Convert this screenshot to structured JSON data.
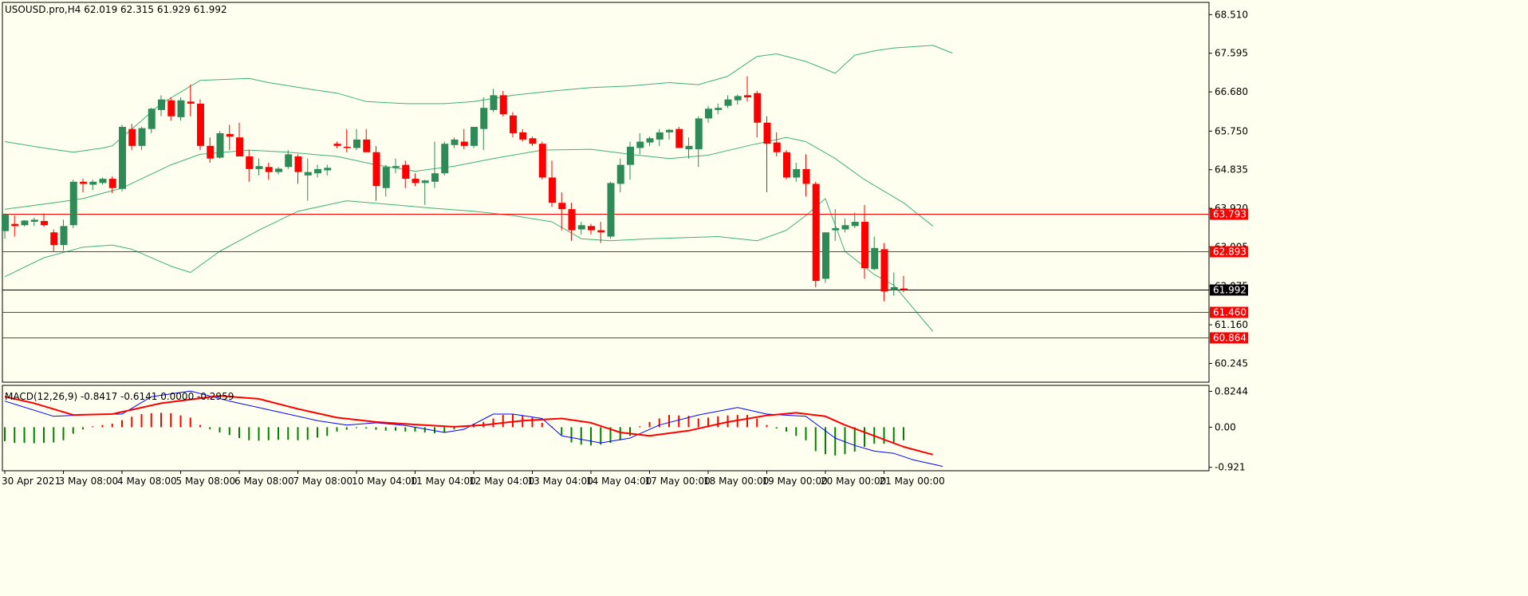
{
  "header": {
    "main_title": "USOUSD.pro,H4  62.019 62.315 61.929 61.992",
    "macd_title": "MACD(12,26,9) -0.8417 -0.6141 0.0000 -0.2959"
  },
  "colors": {
    "background": "#FFFFF0",
    "bull": "#2E8B57",
    "bear": "#FF0000",
    "bands": "#3CB371",
    "level": "#FF0000",
    "current": "#000000",
    "macd_main": "#0000FF",
    "macd_signal": "#FF0000",
    "hist_pos": "#FF0000",
    "hist_neg": "#008000"
  },
  "chart_data": [
    {
      "type": "candlestick",
      "symbol": "USOUSD.pro",
      "timeframe": "H4",
      "ohlc_readout": [
        62.019,
        62.315,
        61.929,
        61.992
      ],
      "ylim": [
        59.8,
        68.8
      ],
      "y_ticks": [
        "68.510",
        "67.595",
        "66.680",
        "65.750",
        "64.835",
        "63.920",
        "63.005",
        "62.075",
        "61.160",
        "60.245"
      ],
      "x_ticks": [
        "30 Apr 2021",
        "3 May 08:00",
        "4 May 08:00",
        "5 May 08:00",
        "6 May 08:00",
        "7 May 08:00",
        "10 May 04:00",
        "11 May 04:00",
        "12 May 04:00",
        "13 May 04:00",
        "14 May 04:00",
        "17 May 00:00",
        "18 May 00:00",
        "19 May 00:00",
        "20 May 00:00",
        "21 May 00:00"
      ],
      "price_levels": [
        {
          "value": 63.793,
          "label": "63.793",
          "color": "#FF0000",
          "style": "line"
        },
        {
          "value": 62.893,
          "label": "62.893",
          "color": "#FF0000",
          "style": "line"
        },
        {
          "value": 61.46,
          "label": "61.460",
          "color": "#FF0000",
          "style": "line"
        },
        {
          "value": 60.864,
          "label": "60.864",
          "color": "#FF0000",
          "style": "line"
        },
        {
          "value": 61.992,
          "label": "61.992",
          "color": "#000000",
          "style": "current"
        }
      ],
      "candles": [
        [
          63.38,
          63.8,
          63.2,
          63.78
        ],
        [
          63.55,
          63.75,
          63.25,
          63.5
        ],
        [
          63.52,
          63.64,
          63.49,
          63.63
        ],
        [
          63.6,
          63.7,
          63.5,
          63.65
        ],
        [
          63.62,
          63.8,
          63.48,
          63.52
        ],
        [
          63.35,
          63.42,
          62.9,
          63.05
        ],
        [
          63.05,
          63.65,
          62.92,
          63.5
        ],
        [
          63.52,
          64.6,
          63.45,
          64.55
        ],
        [
          64.55,
          64.62,
          64.3,
          64.5
        ],
        [
          64.48,
          64.6,
          64.35,
          64.55
        ],
        [
          64.52,
          64.65,
          64.48,
          64.62
        ],
        [
          64.62,
          64.68,
          64.28,
          64.4
        ],
        [
          64.38,
          65.9,
          64.32,
          65.85
        ],
        [
          65.8,
          65.92,
          65.3,
          65.4
        ],
        [
          65.4,
          65.85,
          65.3,
          65.82
        ],
        [
          65.8,
          66.3,
          65.7,
          66.28
        ],
        [
          66.25,
          66.6,
          66.1,
          66.5
        ],
        [
          66.48,
          66.55,
          66.0,
          66.1
        ],
        [
          66.08,
          66.55,
          66.0,
          66.48
        ],
        [
          66.45,
          66.85,
          66.1,
          66.4
        ],
        [
          66.4,
          66.5,
          65.3,
          65.4
        ],
        [
          65.4,
          65.6,
          65.0,
          65.1
        ],
        [
          65.12,
          65.75,
          65.1,
          65.7
        ],
        [
          65.68,
          65.9,
          65.3,
          65.62
        ],
        [
          65.6,
          65.95,
          65.15,
          65.15
        ],
        [
          65.15,
          65.3,
          64.55,
          64.85
        ],
        [
          64.85,
          65.1,
          64.7,
          64.92
        ],
        [
          64.9,
          65.0,
          64.6,
          64.78
        ],
        [
          64.78,
          64.9,
          64.72,
          64.86
        ],
        [
          64.9,
          65.3,
          64.85,
          65.2
        ],
        [
          65.15,
          65.2,
          64.5,
          64.78
        ],
        [
          64.7,
          65.1,
          64.1,
          64.78
        ],
        [
          64.75,
          64.95,
          64.65,
          64.85
        ],
        [
          64.82,
          64.95,
          64.7,
          64.88
        ],
        [
          65.45,
          65.5,
          65.35,
          65.4
        ],
        [
          65.38,
          65.8,
          65.25,
          65.35
        ],
        [
          65.35,
          65.8,
          65.3,
          65.55
        ],
        [
          65.55,
          65.8,
          65.3,
          65.25
        ],
        [
          65.25,
          65.4,
          64.1,
          64.45
        ],
        [
          64.4,
          64.95,
          64.2,
          64.9
        ],
        [
          64.88,
          65.1,
          64.75,
          64.92
        ],
        [
          64.95,
          65.05,
          64.4,
          64.62
        ],
        [
          64.62,
          64.75,
          64.45,
          64.52
        ],
        [
          64.52,
          64.6,
          64.0,
          64.58
        ],
        [
          64.55,
          65.5,
          64.4,
          64.75
        ],
        [
          64.75,
          65.5,
          64.7,
          65.45
        ],
        [
          65.42,
          65.6,
          65.35,
          65.55
        ],
        [
          65.5,
          65.8,
          65.32,
          65.4
        ],
        [
          65.4,
          65.85,
          65.35,
          65.85
        ],
        [
          65.8,
          66.55,
          65.3,
          66.3
        ],
        [
          66.25,
          66.75,
          66.2,
          66.6
        ],
        [
          66.6,
          66.7,
          66.1,
          66.15
        ],
        [
          66.12,
          66.2,
          65.6,
          65.7
        ],
        [
          65.72,
          65.8,
          65.5,
          65.55
        ],
        [
          65.58,
          65.62,
          65.4,
          65.45
        ],
        [
          65.45,
          65.5,
          64.6,
          64.65
        ],
        [
          64.65,
          65.05,
          63.95,
          64.05
        ],
        [
          64.05,
          64.3,
          63.4,
          63.9
        ],
        [
          63.9,
          64.05,
          63.15,
          63.4
        ],
        [
          63.42,
          63.6,
          63.3,
          63.52
        ],
        [
          63.5,
          63.55,
          63.3,
          63.4
        ],
        [
          63.4,
          63.6,
          63.1,
          63.35
        ],
        [
          63.25,
          64.55,
          63.2,
          64.52
        ],
        [
          64.5,
          65.1,
          64.3,
          64.95
        ],
        [
          64.95,
          65.5,
          64.6,
          65.38
        ],
        [
          65.35,
          65.7,
          65.2,
          65.5
        ],
        [
          65.48,
          65.62,
          65.4,
          65.58
        ],
        [
          65.55,
          65.8,
          65.4,
          65.72
        ],
        [
          65.72,
          65.8,
          65.55,
          65.78
        ],
        [
          65.8,
          65.85,
          65.35,
          65.35
        ],
        [
          65.32,
          65.6,
          65.1,
          65.4
        ],
        [
          65.32,
          66.1,
          64.9,
          66.05
        ],
        [
          66.05,
          66.35,
          65.95,
          66.28
        ],
        [
          66.25,
          66.4,
          66.15,
          66.3
        ],
        [
          66.35,
          66.6,
          66.3,
          66.5
        ],
        [
          66.48,
          66.62,
          66.38,
          66.58
        ],
        [
          66.6,
          67.05,
          66.45,
          66.55
        ],
        [
          66.65,
          66.7,
          65.6,
          65.95
        ],
        [
          65.95,
          66.1,
          64.3,
          65.45
        ],
        [
          65.48,
          65.72,
          65.15,
          65.25
        ],
        [
          65.25,
          65.3,
          64.6,
          64.65
        ],
        [
          64.65,
          65.0,
          64.55,
          64.85
        ],
        [
          64.85,
          65.2,
          64.2,
          64.5
        ],
        [
          64.5,
          64.55,
          62.05,
          62.2
        ],
        [
          62.25,
          63.35,
          62.15,
          63.35
        ],
        [
          63.4,
          63.9,
          63.15,
          63.45
        ],
        [
          63.42,
          63.68,
          63.35,
          63.52
        ],
        [
          63.5,
          63.82,
          63.45,
          63.6
        ],
        [
          63.6,
          64.0,
          62.25,
          62.5
        ],
        [
          62.48,
          63.25,
          62.45,
          62.98
        ],
        [
          62.95,
          63.1,
          61.72,
          61.95
        ],
        [
          61.98,
          62.4,
          61.85,
          62.05
        ],
        [
          62.02,
          62.32,
          61.93,
          61.99
        ]
      ],
      "bollinger_upper": [
        [
          0,
          65.5
        ],
        [
          4,
          65.35
        ],
        [
          7,
          65.25
        ],
        [
          10,
          65.35
        ],
        [
          11,
          65.4
        ],
        [
          13,
          65.8
        ],
        [
          16,
          66.4
        ],
        [
          20,
          66.95
        ],
        [
          25,
          67.0
        ],
        [
          27,
          66.9
        ],
        [
          31,
          66.75
        ],
        [
          34,
          66.65
        ],
        [
          37,
          66.45
        ],
        [
          41,
          66.4
        ],
        [
          45,
          66.4
        ],
        [
          48,
          66.45
        ],
        [
          52,
          66.6
        ],
        [
          56,
          66.7
        ],
        [
          60,
          66.78
        ],
        [
          64,
          66.82
        ],
        [
          68,
          66.9
        ],
        [
          71,
          66.85
        ],
        [
          74,
          67.05
        ],
        [
          77,
          67.52
        ],
        [
          79,
          67.58
        ],
        [
          82,
          67.4
        ],
        [
          85,
          67.12
        ],
        [
          87,
          67.55
        ],
        [
          89,
          67.65
        ],
        [
          91,
          67.72
        ],
        [
          93,
          67.75
        ],
        [
          95,
          67.78
        ],
        [
          97,
          67.6
        ]
      ],
      "bollinger_middle": [
        [
          0,
          63.9
        ],
        [
          5,
          64.05
        ],
        [
          8,
          64.15
        ],
        [
          12,
          64.4
        ],
        [
          17,
          64.95
        ],
        [
          20,
          65.2
        ],
        [
          25,
          65.3
        ],
        [
          29,
          65.25
        ],
        [
          34,
          65.15
        ],
        [
          38,
          64.95
        ],
        [
          42,
          64.8
        ],
        [
          46,
          64.92
        ],
        [
          50,
          65.1
        ],
        [
          55,
          65.3
        ],
        [
          60,
          65.32
        ],
        [
          64,
          65.2
        ],
        [
          68,
          65.1
        ],
        [
          72,
          65.18
        ],
        [
          76,
          65.4
        ],
        [
          80,
          65.6
        ],
        [
          82,
          65.5
        ],
        [
          85,
          65.1
        ],
        [
          88,
          64.6
        ],
        [
          92,
          64.05
        ],
        [
          95,
          63.5
        ]
      ],
      "bollinger_lower": [
        [
          0,
          62.3
        ],
        [
          4,
          62.75
        ],
        [
          8,
          63.0
        ],
        [
          11,
          63.05
        ],
        [
          13,
          62.95
        ],
        [
          17,
          62.55
        ],
        [
          19,
          62.4
        ],
        [
          22,
          62.9
        ],
        [
          26,
          63.4
        ],
        [
          30,
          63.85
        ],
        [
          35,
          64.1
        ],
        [
          40,
          64.0
        ],
        [
          44,
          63.92
        ],
        [
          48,
          63.85
        ],
        [
          52,
          63.75
        ],
        [
          56,
          63.6
        ],
        [
          59,
          63.2
        ],
        [
          62,
          63.15
        ],
        [
          66,
          63.2
        ],
        [
          73,
          63.25
        ],
        [
          77,
          63.15
        ],
        [
          80,
          63.4
        ],
        [
          82,
          63.75
        ],
        [
          84,
          64.15
        ],
        [
          86,
          62.9
        ],
        [
          89,
          62.35
        ],
        [
          91,
          62.1
        ],
        [
          93,
          61.55
        ],
        [
          95,
          61.0
        ]
      ]
    },
    {
      "type": "macd",
      "params": "12,26,9",
      "readout": [
        -0.8417,
        -0.6141,
        0.0,
        -0.2959
      ],
      "ylim": [
        -1.0,
        0.96
      ],
      "y_ticks": [
        "0.8244",
        "0.00",
        "-0.921"
      ],
      "histogram": [
        -0.32,
        -0.36,
        -0.36,
        -0.37,
        -0.36,
        -0.35,
        -0.3,
        -0.15,
        -0.05,
        0.02,
        0.05,
        0.08,
        0.16,
        0.24,
        0.3,
        0.32,
        0.33,
        0.32,
        0.27,
        0.22,
        0.05,
        -0.05,
        -0.12,
        -0.18,
        -0.25,
        -0.3,
        -0.31,
        -0.3,
        -0.29,
        -0.29,
        -0.3,
        -0.29,
        -0.24,
        -0.2,
        -0.1,
        -0.06,
        -0.02,
        -0.03,
        -0.06,
        -0.08,
        -0.08,
        -0.1,
        -0.1,
        -0.12,
        -0.14,
        -0.12,
        -0.05,
        0.03,
        0.08,
        0.12,
        0.2,
        0.28,
        0.29,
        0.27,
        0.22,
        0.1,
        0.02,
        -0.18,
        -0.35,
        -0.4,
        -0.42,
        -0.4,
        -0.36,
        -0.3,
        -0.2,
        0.02,
        0.12,
        0.2,
        0.28,
        0.27,
        0.26,
        0.2,
        0.22,
        0.25,
        0.27,
        0.28,
        0.28,
        0.2,
        0.05,
        -0.03,
        -0.1,
        -0.2,
        -0.3,
        -0.55,
        -0.62,
        -0.65,
        -0.62,
        -0.56,
        -0.45,
        -0.38,
        -0.38,
        -0.35,
        -0.3
      ],
      "main": [
        [
          0,
          0.6
        ],
        [
          5,
          0.25
        ],
        [
          10,
          0.3
        ],
        [
          12,
          0.3
        ],
        [
          15,
          0.7
        ],
        [
          19,
          0.83
        ],
        [
          23,
          0.6
        ],
        [
          28,
          0.35
        ],
        [
          32,
          0.15
        ],
        [
          35,
          0.05
        ],
        [
          38,
          0.1
        ],
        [
          41,
          0.04
        ],
        [
          45,
          -0.12
        ],
        [
          47,
          -0.05
        ],
        [
          50,
          0.3
        ],
        [
          52,
          0.3
        ],
        [
          55,
          0.2
        ],
        [
          57,
          -0.2
        ],
        [
          61,
          -0.36
        ],
        [
          64,
          -0.25
        ],
        [
          67,
          0.05
        ],
        [
          71,
          0.28
        ],
        [
          75,
          0.45
        ],
        [
          78,
          0.3
        ],
        [
          82,
          0.25
        ],
        [
          85,
          -0.25
        ],
        [
          87,
          -0.42
        ],
        [
          89,
          -0.55
        ],
        [
          91,
          -0.6
        ],
        [
          93,
          -0.75
        ],
        [
          96,
          -0.9
        ]
      ],
      "signal": [
        [
          0,
          0.7
        ],
        [
          3,
          0.55
        ],
        [
          7,
          0.28
        ],
        [
          11,
          0.3
        ],
        [
          16,
          0.55
        ],
        [
          22,
          0.72
        ],
        [
          26,
          0.65
        ],
        [
          30,
          0.42
        ],
        [
          34,
          0.22
        ],
        [
          38,
          0.12
        ],
        [
          42,
          0.06
        ],
        [
          46,
          0.01
        ],
        [
          49,
          0.05
        ],
        [
          53,
          0.15
        ],
        [
          57,
          0.2
        ],
        [
          60,
          0.1
        ],
        [
          63,
          -0.12
        ],
        [
          66,
          -0.2
        ],
        [
          70,
          -0.08
        ],
        [
          74,
          0.12
        ],
        [
          78,
          0.27
        ],
        [
          81,
          0.33
        ],
        [
          84,
          0.25
        ],
        [
          86,
          0.05
        ],
        [
          89,
          -0.2
        ],
        [
          92,
          -0.45
        ],
        [
          95,
          -0.63
        ]
      ]
    }
  ]
}
